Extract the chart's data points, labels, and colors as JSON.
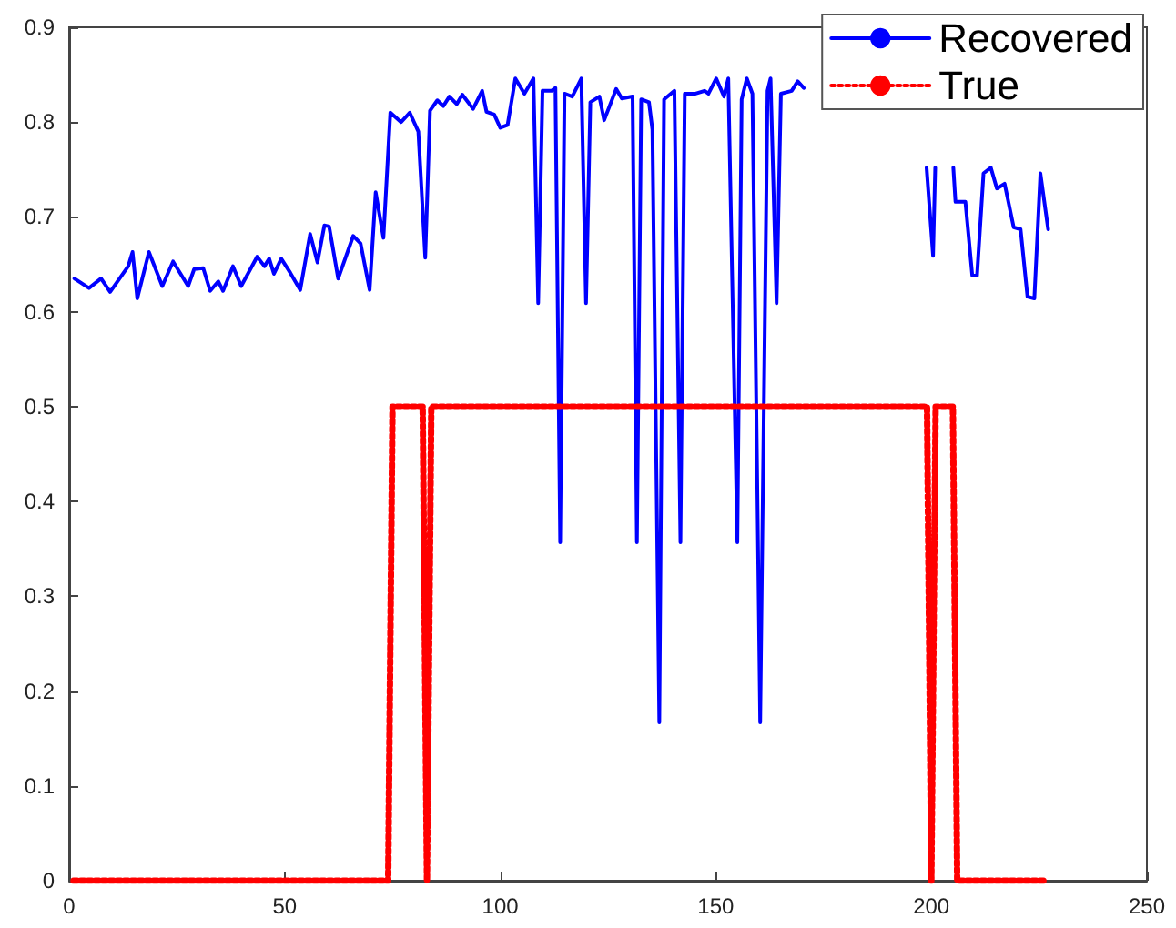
{
  "chart_data": {
    "type": "line",
    "xlim": [
      0,
      250
    ],
    "xticks": [
      0,
      50,
      100,
      150,
      200,
      250
    ],
    "ylim": [
      0,
      0.9
    ],
    "yticks": [
      0,
      0.1,
      0.2,
      0.3,
      0.4,
      0.5,
      0.6,
      0.7,
      0.8,
      0.9
    ],
    "grid": false,
    "legend": "top right",
    "series": [
      {
        "name": "Recovered",
        "color": "#0000ff",
        "line_style": "solid",
        "x": [
          1.2,
          4.6,
          7.4,
          9.5,
          13.7,
          14.7,
          15.8,
          18.5,
          21.6,
          24.1,
          27.6,
          29,
          31.1,
          32.7,
          34.6,
          35.7,
          38,
          39.9,
          43.6,
          45.3,
          46.4,
          47.5,
          49.2,
          51.3,
          53.6,
          55.9,
          57.6,
          59.2,
          60.3,
          62.4,
          65.9,
          67.6,
          69.7,
          71.1,
          72.9,
          74.5,
          77,
          79,
          80,
          81,
          82.6,
          83.7,
          85.4,
          86.8,
          88.2,
          89.9,
          91.2,
          93.7,
          95.8,
          96.8,
          98.6,
          100,
          101.7,
          103.5,
          105.6,
          107.7,
          108.8,
          109.8,
          111.9,
          112.8,
          113.9,
          114.9,
          116.7,
          118.8,
          119.9,
          120.9,
          123,
          124.1,
          126.9,
          128.2,
          130.7,
          131.7,
          132.7,
          134.5,
          135.3,
          136.9,
          138,
          140.4,
          141.8,
          142.8,
          145.3,
          147.4,
          148.3,
          150.1,
          151.9,
          152.9,
          155,
          156,
          157.2,
          158.5,
          160.3,
          162,
          162.7,
          164.1,
          165.1,
          167.6,
          169,
          170.4,
          185,
          198.9,
          200.4,
          200.9,
          203,
          205.1,
          205.6,
          207.9,
          209.5,
          210.6,
          212.1,
          213.8,
          215.2,
          217,
          219.1,
          220.7,
          222.3,
          223.9,
          225.3,
          227.1
        ],
        "values": [
          0.635,
          0.625,
          0.635,
          0.621,
          0.648,
          0.663,
          0.614,
          0.663,
          0.627,
          0.653,
          0.627,
          0.645,
          0.646,
          0.622,
          0.632,
          0.622,
          0.648,
          0.627,
          0.658,
          0.648,
          0.656,
          0.64,
          0.656,
          0.641,
          0.623,
          0.682,
          0.652,
          0.691,
          0.69,
          0.635,
          0.68,
          0.672,
          0.623,
          0.726,
          0.678,
          0.81,
          0.8,
          0.81,
          0.8,
          0.79,
          0.657,
          0.812,
          0.823,
          0.817,
          0.827,
          0.819,
          0.829,
          0.814,
          0.833,
          0.811,
          0.808,
          0.794,
          0.797,
          0.846,
          0.83,
          0.846,
          0.609,
          0.833,
          0.833,
          0.836,
          0.357,
          0.83,
          0.827,
          0.846,
          0.609,
          0.821,
          0.827,
          0.802,
          0.835,
          0.825,
          0.827,
          0.357,
          0.824,
          0.821,
          0.792,
          0.167,
          0.824,
          0.833,
          0.357,
          0.83,
          0.83,
          0.833,
          0.83,
          0.846,
          0.827,
          0.846,
          0.357,
          0.824,
          0.846,
          0.83,
          0.167,
          0.833,
          0.846,
          0.609,
          0.83,
          0.833,
          0.843,
          0.836,
          null,
          0.752,
          0.659,
          0.752,
          null,
          0.752,
          0.716,
          0.716,
          0.638,
          0.638,
          0.746,
          0.752,
          0.73,
          0.735,
          0.689,
          0.687,
          0.616,
          0.614,
          0.746,
          0.687
        ]
      },
      {
        "name": "True",
        "color": "#ff0000",
        "line_style": "dotted",
        "x": [
          1,
          74,
          75,
          82,
          83,
          84,
          199,
          200,
          201,
          205,
          206,
          226
        ],
        "values": [
          0,
          0,
          0.5,
          0.5,
          0,
          0.5,
          0.5,
          0,
          0.5,
          0.5,
          0,
          0
        ]
      }
    ]
  }
}
